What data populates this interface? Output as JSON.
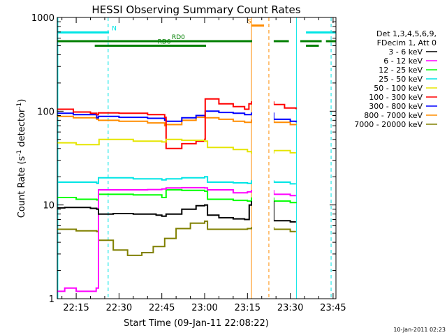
{
  "chart_data": {
    "type": "line",
    "title": "HESSI Observing Summary Count Rates",
    "xlabel": "Start Time (09-Jan-11 22:08:22)",
    "ylabel": "Count Rate (s",
    "ylabel_sup1": "-1",
    "ylabel_mid": " detector",
    "ylabel_sup2": "-1",
    "ylabel_end": ")",
    "footer_date": "10-Jan-2011 02:23",
    "y_scale": "log",
    "xlim_min": [
      8.37,
      106.0
    ],
    "ylim": [
      1,
      1000
    ],
    "x_ticks": [
      {
        "min": 15,
        "label": "22:15"
      },
      {
        "min": 30,
        "label": "22:30"
      },
      {
        "min": 45,
        "label": "22:45"
      },
      {
        "min": 60,
        "label": "23:00"
      },
      {
        "min": 75,
        "label": "23:15"
      },
      {
        "min": 90,
        "label": "23:30"
      },
      {
        "min": 105,
        "label": "23:45"
      }
    ],
    "y_ticks": [
      {
        "v": 1,
        "label": "1"
      },
      {
        "v": 10,
        "label": "10"
      },
      {
        "v": 100,
        "label": "100"
      },
      {
        "v": 1000,
        "label": "1000"
      }
    ],
    "legend_header": [
      "Det 1,3,4,5,6,9,",
      "FDecim 1, Att 0"
    ],
    "flags": [
      {
        "label": "N",
        "color": "#00e5e5",
        "y": 692,
        "segments": [
          [
            8.4,
            26.5
          ],
          [
            95.5,
            106.0
          ]
        ],
        "label_at": 27.5
      },
      {
        "label": "RD0",
        "color": "#007f00",
        "y": 558,
        "segments": [
          [
            8.4,
            89.5
          ],
          [
            93.5,
            101.0
          ],
          [
            102.5,
            106.0
          ]
        ],
        "label_at": 48.5
      },
      {
        "label": "RD6",
        "color": "#007f00",
        "y": 500,
        "segments": [
          [
            21.5,
            60.5
          ],
          [
            95.5,
            100.0
          ]
        ],
        "label_at": 43.5
      },
      {
        "label": "S",
        "color": "#ff8c00",
        "y": 820,
        "segments": [
          [
            76.5,
            80.8
          ]
        ],
        "label_at": 75.0
      }
    ],
    "vlines": [
      {
        "min": 8.6,
        "color": "#00e5e5",
        "style": "solid"
      },
      {
        "min": 26.2,
        "color": "#00e5e5",
        "style": "dashed"
      },
      {
        "min": 76.4,
        "color": "#ff8c00",
        "style": "solid"
      },
      {
        "min": 82.5,
        "color": "#ff8c00",
        "style": "dashed"
      },
      {
        "min": 92.2,
        "color": "#00e5e5",
        "style": "solid"
      },
      {
        "min": 104.3,
        "color": "#00e5e5",
        "style": "dashed"
      }
    ],
    "gap": [
      76.4,
      84.2
    ],
    "series": [
      {
        "name": "3 - 6 keV",
        "color": "#000000",
        "values": [
          [
            8.4,
            9.3
          ],
          [
            11,
            9.4
          ],
          [
            20,
            9.2
          ],
          [
            22.2,
            9.0
          ],
          [
            22.8,
            8.0
          ],
          [
            28,
            8.1
          ],
          [
            35,
            8.0
          ],
          [
            43,
            7.8
          ],
          [
            45,
            7.6
          ],
          [
            46.5,
            8.0
          ],
          [
            52,
            9.0
          ],
          [
            57,
            9.8
          ],
          [
            60,
            10.0
          ],
          [
            61,
            7.8
          ],
          [
            65,
            7.3
          ],
          [
            70,
            7.1
          ],
          [
            74,
            7.0
          ],
          [
            75.6,
            10.0
          ],
          [
            76.4,
            10.8
          ],
          [
            84.2,
            6.8
          ],
          [
            90,
            6.6
          ],
          [
            92,
            6.6
          ]
        ]
      },
      {
        "name": "6 - 12 keV",
        "color": "#ff00ff",
        "values": [
          [
            8.4,
            1.2
          ],
          [
            11,
            1.3
          ],
          [
            15,
            1.2
          ],
          [
            22,
            1.3
          ],
          [
            22.8,
            14.5
          ],
          [
            32,
            14.5
          ],
          [
            40,
            14.6
          ],
          [
            45,
            14.8
          ],
          [
            46.5,
            15.2
          ],
          [
            52,
            15.3
          ],
          [
            60,
            15.2
          ],
          [
            61,
            14.5
          ],
          [
            70,
            13.5
          ],
          [
            75,
            13.8
          ],
          [
            76.4,
            14.2
          ],
          [
            84.2,
            13.0
          ],
          [
            90,
            12.6
          ],
          [
            92,
            12.6
          ]
        ]
      },
      {
        "name": "12 - 25 keV",
        "color": "#00ff00",
        "values": [
          [
            8.4,
            12.0
          ],
          [
            15,
            11.5
          ],
          [
            22.2,
            11.3
          ],
          [
            22.8,
            13.0
          ],
          [
            35,
            12.8
          ],
          [
            45,
            12.0
          ],
          [
            46.5,
            14.5
          ],
          [
            52,
            14.3
          ],
          [
            60,
            14.0
          ],
          [
            61,
            11.5
          ],
          [
            70,
            11.2
          ],
          [
            75,
            11.0
          ],
          [
            76.4,
            11.8
          ],
          [
            84.2,
            11.0
          ],
          [
            90,
            10.6
          ],
          [
            92,
            10.8
          ]
        ]
      },
      {
        "name": "25 - 50 keV",
        "color": "#00e5e5",
        "values": [
          [
            8.4,
            17.5
          ],
          [
            22.2,
            17.0
          ],
          [
            22.8,
            19.5
          ],
          [
            35,
            19.0
          ],
          [
            45,
            18.5
          ],
          [
            46.5,
            19.0
          ],
          [
            52,
            19.5
          ],
          [
            60,
            20.0
          ],
          [
            61,
            17.5
          ],
          [
            70,
            17.2
          ],
          [
            75,
            17.0
          ],
          [
            76.4,
            18.0
          ],
          [
            84.2,
            17.5
          ],
          [
            90,
            16.8
          ],
          [
            92,
            16.8
          ]
        ]
      },
      {
        "name": "50 - 100 keV",
        "color": "#e5e500",
        "values": [
          [
            8.4,
            46
          ],
          [
            15,
            44
          ],
          [
            22,
            44
          ],
          [
            23,
            50
          ],
          [
            35,
            48
          ],
          [
            45,
            47
          ],
          [
            46.5,
            50
          ],
          [
            52,
            49
          ],
          [
            60,
            48
          ],
          [
            61,
            41
          ],
          [
            70,
            39
          ],
          [
            75,
            37
          ],
          [
            76.4,
            36
          ],
          [
            84.2,
            38
          ],
          [
            90,
            36
          ],
          [
            92,
            36
          ]
        ]
      },
      {
        "name": "100 - 300 keV",
        "color": "#ff0000",
        "values": [
          [
            8.4,
            105
          ],
          [
            14,
            98
          ],
          [
            20,
            95
          ],
          [
            22.2,
            92
          ],
          [
            22.8,
            96
          ],
          [
            30,
            95
          ],
          [
            40,
            92
          ],
          [
            46,
            86
          ],
          [
            46.5,
            40
          ],
          [
            52,
            45
          ],
          [
            57,
            48
          ],
          [
            60,
            50
          ],
          [
            60.2,
            135
          ],
          [
            65,
            120
          ],
          [
            70,
            112
          ],
          [
            74,
            105
          ],
          [
            75.5,
            120
          ],
          [
            76.4,
            125
          ],
          [
            84.2,
            118
          ],
          [
            88,
            108
          ],
          [
            92,
            105
          ]
        ]
      },
      {
        "name": "300 - 800 keV",
        "color": "#0000ff",
        "values": [
          [
            8.4,
            95
          ],
          [
            14,
            92
          ],
          [
            22.2,
            85
          ],
          [
            22.8,
            88
          ],
          [
            30,
            86
          ],
          [
            40,
            84
          ],
          [
            46,
            80
          ],
          [
            46.5,
            78
          ],
          [
            52,
            85
          ],
          [
            57,
            90
          ],
          [
            60,
            90
          ],
          [
            60.2,
            100
          ],
          [
            65,
            97
          ],
          [
            70,
            95
          ],
          [
            74,
            92
          ],
          [
            76.4,
            95
          ],
          [
            84.2,
            82
          ],
          [
            90,
            78
          ],
          [
            92,
            76
          ]
        ]
      },
      {
        "name": "800 - 7000 keV",
        "color": "#ff8c00",
        "values": [
          [
            8.4,
            88
          ],
          [
            14,
            85
          ],
          [
            22.2,
            82
          ],
          [
            22.8,
            80
          ],
          [
            30,
            78
          ],
          [
            40,
            75
          ],
          [
            46,
            70
          ],
          [
            46.5,
            72
          ],
          [
            52,
            80
          ],
          [
            57,
            86
          ],
          [
            60,
            88
          ],
          [
            60.2,
            85
          ],
          [
            65,
            82
          ],
          [
            70,
            78
          ],
          [
            74,
            76
          ],
          [
            76.4,
            80
          ],
          [
            84.2,
            76
          ],
          [
            90,
            72
          ],
          [
            92,
            71
          ]
        ]
      },
      {
        "name": "7000 - 20000 keV",
        "color": "#808000",
        "values": [
          [
            8.4,
            5.5
          ],
          [
            15,
            5.3
          ],
          [
            22.2,
            5.2
          ],
          [
            22.8,
            4.2
          ],
          [
            28,
            3.3
          ],
          [
            33,
            2.9
          ],
          [
            38,
            3.1
          ],
          [
            42,
            3.6
          ],
          [
            46,
            4.4
          ],
          [
            50,
            5.6
          ],
          [
            55,
            6.4
          ],
          [
            60,
            6.7
          ],
          [
            61,
            5.5
          ],
          [
            70,
            5.5
          ],
          [
            75,
            5.6
          ],
          [
            76.4,
            5.7
          ],
          [
            84.2,
            5.5
          ],
          [
            90,
            5.2
          ],
          [
            92,
            5.2
          ]
        ]
      }
    ]
  }
}
